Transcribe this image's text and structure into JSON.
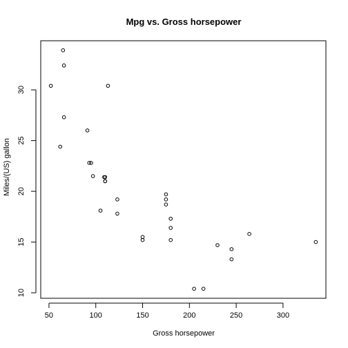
{
  "chart_data": {
    "type": "scatter",
    "title": "Mpg vs. Gross horsepower",
    "xlabel": "Gross horsepower",
    "ylabel": "Miles/(US) gallon",
    "xlim": [
      41.2,
      345.8
    ],
    "ylim": [
      9.46,
      34.84
    ],
    "xticks": [
      50,
      100,
      150,
      200,
      250,
      300
    ],
    "yticks": [
      10,
      15,
      20,
      25,
      30
    ],
    "grid": false,
    "points": [
      {
        "x": 110,
        "y": 21.0
      },
      {
        "x": 110,
        "y": 21.0
      },
      {
        "x": 93,
        "y": 22.8
      },
      {
        "x": 110,
        "y": 21.4
      },
      {
        "x": 175,
        "y": 18.7
      },
      {
        "x": 105,
        "y": 18.1
      },
      {
        "x": 245,
        "y": 14.3
      },
      {
        "x": 62,
        "y": 24.4
      },
      {
        "x": 95,
        "y": 22.8
      },
      {
        "x": 123,
        "y": 19.2
      },
      {
        "x": 123,
        "y": 17.8
      },
      {
        "x": 180,
        "y": 16.4
      },
      {
        "x": 180,
        "y": 17.3
      },
      {
        "x": 180,
        "y": 15.2
      },
      {
        "x": 205,
        "y": 10.4
      },
      {
        "x": 215,
        "y": 10.4
      },
      {
        "x": 230,
        "y": 14.7
      },
      {
        "x": 66,
        "y": 32.4
      },
      {
        "x": 52,
        "y": 30.4
      },
      {
        "x": 65,
        "y": 33.9
      },
      {
        "x": 97,
        "y": 21.5
      },
      {
        "x": 150,
        "y": 15.5
      },
      {
        "x": 150,
        "y": 15.2
      },
      {
        "x": 245,
        "y": 13.3
      },
      {
        "x": 175,
        "y": 19.2
      },
      {
        "x": 66,
        "y": 27.3
      },
      {
        "x": 91,
        "y": 26.0
      },
      {
        "x": 113,
        "y": 30.4
      },
      {
        "x": 264,
        "y": 15.8
      },
      {
        "x": 175,
        "y": 19.7
      },
      {
        "x": 335,
        "y": 15.0
      },
      {
        "x": 109,
        "y": 21.4
      }
    ]
  }
}
